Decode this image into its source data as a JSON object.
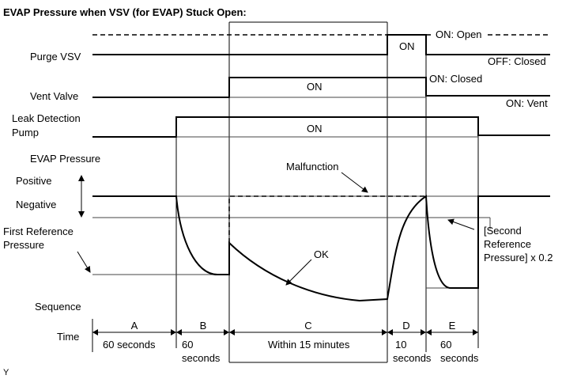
{
  "title": "EVAP Pressure when VSV (for EVAP) Stuck Open:",
  "row_labels": {
    "purge_vsv": "Purge VSV",
    "vent_valve": "Vent Valve",
    "leak_pump_line1": "Leak Detection",
    "leak_pump_line2": "Pump",
    "evap_pressure": "EVAP Pressure",
    "positive": "Positive",
    "negative": "Negative",
    "first_ref_line1": "First Reference",
    "first_ref_line2": "Pressure",
    "sequence": "Sequence",
    "time": "Time"
  },
  "state_labels": {
    "on_open": "ON: Open",
    "off_closed": "OFF: Closed",
    "on_closed": "ON: Closed",
    "on_vent": "ON: Vent",
    "purge_on": "ON",
    "vent_on": "ON",
    "pump_on": "ON"
  },
  "annotations": {
    "malfunction": "Malfunction",
    "ok": "OK",
    "second_ref_line1": "[Second",
    "second_ref_line2": "Reference",
    "second_ref_line3": "Pressure] x 0.2"
  },
  "sequence": [
    {
      "letter": "A",
      "time": "60 seconds",
      "time_line2": ""
    },
    {
      "letter": "B",
      "time": "60",
      "time_line2": "seconds"
    },
    {
      "letter": "C",
      "time": "Within 15 minutes",
      "time_line2": ""
    },
    {
      "letter": "D",
      "time": "10",
      "time_line2": "seconds"
    },
    {
      "letter": "E",
      "time": "60",
      "time_line2": "seconds"
    }
  ],
  "footer_mark": "Y"
}
